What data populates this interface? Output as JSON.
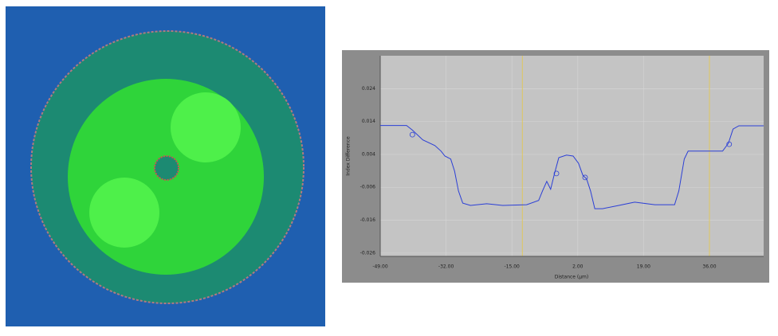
{
  "chart_data": {
    "type": "line",
    "ylabel": "Index Difference",
    "xlabel": "Distance (µm)",
    "xlim": [
      -49,
      50
    ],
    "ylim": [
      -0.027,
      0.034
    ],
    "xticks": [
      {
        "value": -49,
        "label": "-49.00"
      },
      {
        "value": -32,
        "label": "-32.00"
      },
      {
        "value": -15,
        "label": "-15.00"
      },
      {
        "value": 2,
        "label": "2.00"
      },
      {
        "value": 19,
        "label": "19.00"
      },
      {
        "value": 36,
        "label": "36.00"
      }
    ],
    "yticks": [
      0.024,
      0.014,
      0.004,
      -0.006,
      -0.016,
      -0.026
    ],
    "grid": true,
    "cursors": [
      -12.3,
      36.0
    ],
    "series": [
      {
        "color": "#2b3fd6",
        "x": [
          -49,
          -42.2,
          -40.7,
          -38.0,
          -34.9,
          -33.3,
          -32.3,
          -30.8,
          -29.8,
          -28.8,
          -27.7,
          -25.7,
          -21.5,
          -17.4,
          -11.2,
          -8.1,
          -7.1,
          -6.0,
          -5.0,
          -4.0,
          -2.9,
          -0.9,
          0.8,
          2.2,
          3.3,
          4.3,
          5.3,
          6.4,
          8.4,
          12.6,
          16.7,
          21.9,
          27.0,
          28.1,
          29.5,
          30.5,
          34.3,
          39.4,
          40.9,
          42.1,
          43.6,
          50
        ],
        "values": [
          0.0128,
          0.0128,
          0.0114,
          0.0084,
          0.0067,
          0.005,
          0.0035,
          0.0026,
          -0.0011,
          -0.0071,
          -0.0108,
          -0.0115,
          -0.011,
          -0.0115,
          -0.0113,
          -0.01,
          -0.0071,
          -0.0042,
          -0.0066,
          -0.0018,
          0.003,
          0.0038,
          0.0035,
          0.0013,
          -0.0023,
          -0.0035,
          -0.0071,
          -0.0125,
          -0.0125,
          -0.0115,
          -0.0105,
          -0.0113,
          -0.0113,
          -0.0071,
          0.0026,
          0.005,
          0.005,
          0.005,
          0.0074,
          0.0117,
          0.0127,
          0.0127
        ]
      }
    ],
    "points": {
      "x": [
        -40.7,
        -3.5,
        3.9,
        41.1
      ],
      "y": [
        0.01,
        -0.0018,
        -0.003,
        0.0071
      ]
    }
  }
}
